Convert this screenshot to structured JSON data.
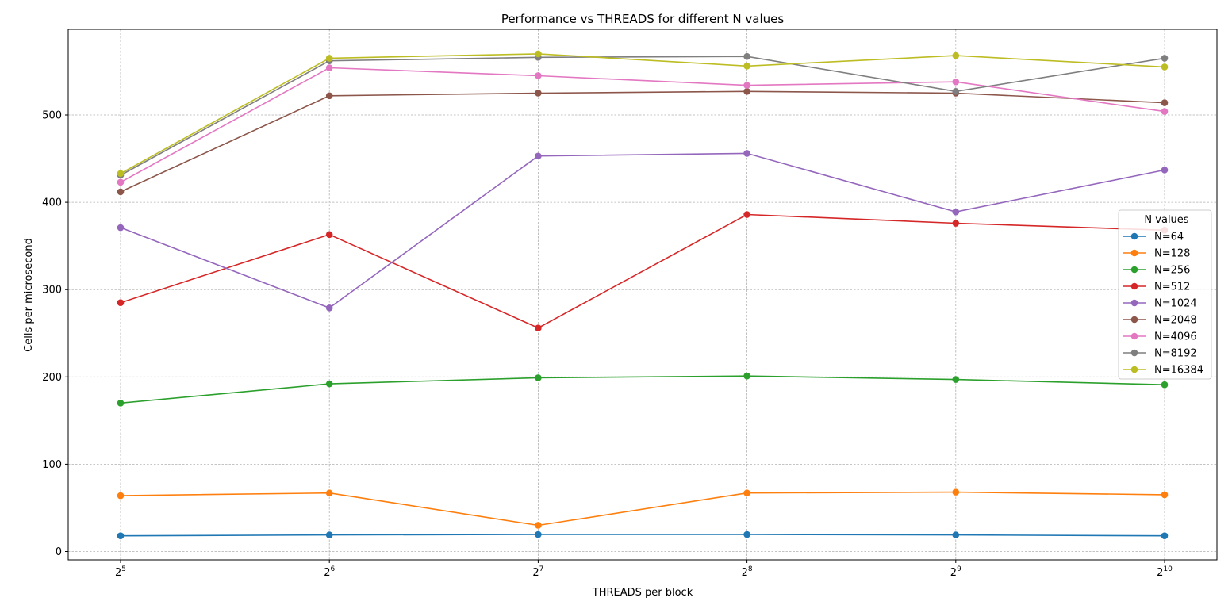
{
  "chart_data": {
    "type": "line",
    "title": "Performance vs THREADS for different N values",
    "xlabel": "THREADS per block",
    "ylabel": "Cells per microsecond",
    "x_scale": "log2",
    "x": [
      32,
      64,
      128,
      256,
      512,
      1024
    ],
    "x_tick_labels": [
      {
        "base": "2",
        "exp": "5"
      },
      {
        "base": "2",
        "exp": "6"
      },
      {
        "base": "2",
        "exp": "7"
      },
      {
        "base": "2",
        "exp": "8"
      },
      {
        "base": "2",
        "exp": "9"
      },
      {
        "base": "2",
        "exp": "10"
      }
    ],
    "yticks": [
      0,
      100,
      200,
      300,
      400,
      500
    ],
    "ylim": [
      -10,
      590
    ],
    "grid": true,
    "legend": {
      "title": "N values",
      "placement": "right"
    },
    "series": [
      {
        "name": "N=64",
        "color": "#1f77b4",
        "values": [
          18,
          19,
          19.5,
          19.5,
          19,
          18
        ]
      },
      {
        "name": "N=128",
        "color": "#ff7f0e",
        "values": [
          64,
          67,
          30,
          67,
          68,
          65
        ]
      },
      {
        "name": "N=256",
        "color": "#2ca02c",
        "values": [
          170,
          192,
          199,
          201,
          197,
          191
        ]
      },
      {
        "name": "N=512",
        "color": "#d62728",
        "values": [
          285,
          363,
          256,
          386,
          376,
          368
        ]
      },
      {
        "name": "N=1024",
        "color": "#9467bd",
        "values": [
          371,
          279,
          453,
          456,
          389,
          437
        ]
      },
      {
        "name": "N=2048",
        "color": "#8c564b",
        "values": [
          412,
          522,
          525,
          527,
          525,
          514
        ]
      },
      {
        "name": "N=4096",
        "color": "#e377c2",
        "values": [
          423,
          554,
          545,
          534,
          538,
          504
        ]
      },
      {
        "name": "N=8192",
        "color": "#7f7f7f",
        "values": [
          431,
          562,
          566,
          567,
          527,
          565
        ]
      },
      {
        "name": "N=16384",
        "color": "#bcbd22",
        "values": [
          433,
          565,
          570,
          556,
          568,
          555
        ]
      }
    ]
  }
}
